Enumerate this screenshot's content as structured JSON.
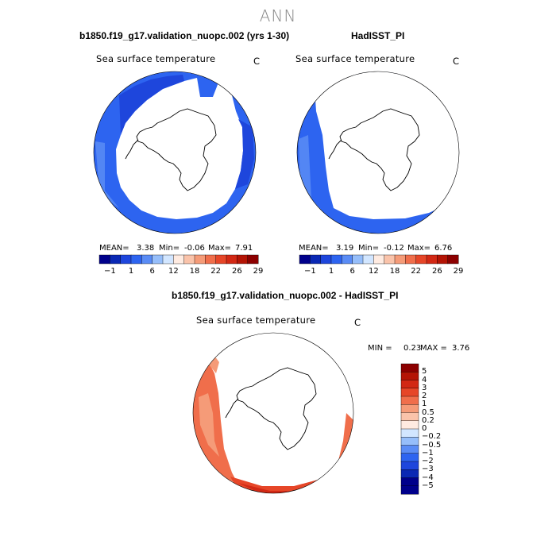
{
  "page_title": "ANN",
  "chart_data": [
    {
      "type": "heatmap",
      "projection": "south-polar-stereographic",
      "title": "b1850.f19_g17.validation_nuopc.002 (yrs 1-30)",
      "field_label": "Sea surface temperature",
      "units": "C",
      "stats": {
        "mean_label": "MEAN=",
        "mean": "3.38",
        "min_label": "Min=",
        "min": "-0.06",
        "max_label": "Max=",
        "max": "7.91"
      },
      "colorbar": {
        "orientation": "horizontal",
        "ticks": [
          "-1",
          "1",
          "6",
          "12",
          "18",
          "22",
          "26",
          "29"
        ],
        "colors": [
          "#00008B",
          "#0A28B4",
          "#1E46DC",
          "#2D64F0",
          "#5A8CF5",
          "#96BEFA",
          "#D2E6FF",
          "#FFEBE1",
          "#FAC3AA",
          "#F59B78",
          "#F06E4B",
          "#E64628",
          "#D22814",
          "#B41405",
          "#8C0000"
        ]
      }
    },
    {
      "type": "heatmap",
      "projection": "south-polar-stereographic",
      "title": "HadISST_PI",
      "field_label": "Sea surface temperature",
      "units": "C",
      "stats": {
        "mean_label": "MEAN=",
        "mean": "3.19",
        "min_label": "Min=",
        "min": "-0.12",
        "max_label": "Max=",
        "max": "6.76"
      },
      "colorbar": {
        "orientation": "horizontal",
        "ticks": [
          "-1",
          "1",
          "6",
          "12",
          "18",
          "22",
          "26",
          "29"
        ],
        "colors": [
          "#00008B",
          "#0A28B4",
          "#1E46DC",
          "#2D64F0",
          "#5A8CF5",
          "#96BEFA",
          "#D2E6FF",
          "#FFEBE1",
          "#FAC3AA",
          "#F59B78",
          "#F06E4B",
          "#E64628",
          "#D22814",
          "#B41405",
          "#8C0000"
        ]
      }
    },
    {
      "type": "heatmap",
      "projection": "south-polar-stereographic",
      "title": "b1850.f19_g17.validation_nuopc.002 - HadISST_PI",
      "field_label": "Sea surface temperature",
      "units": "C",
      "stats": {
        "min_label": "MIN =",
        "min": "0.23",
        "max_label": "MAX =",
        "max": "3.76"
      },
      "colorbar": {
        "orientation": "vertical",
        "ticks_top_to_bottom": [
          "5",
          "4",
          "3",
          "2",
          "1",
          "0.5",
          "0.2",
          "0",
          "-0.2",
          "-0.5",
          "-1",
          "-2",
          "-3",
          "-4",
          "-5"
        ],
        "colors_top_to_bottom": [
          "#8C0000",
          "#B41405",
          "#D22814",
          "#E64628",
          "#F06E4B",
          "#F59B78",
          "#FAC3AA",
          "#FFEBE1",
          "#D2E6FF",
          "#96BEFA",
          "#5A8CF5",
          "#2D64F0",
          "#1E46DC",
          "#0A28B4",
          "#00008B",
          "#00008B"
        ]
      }
    }
  ]
}
